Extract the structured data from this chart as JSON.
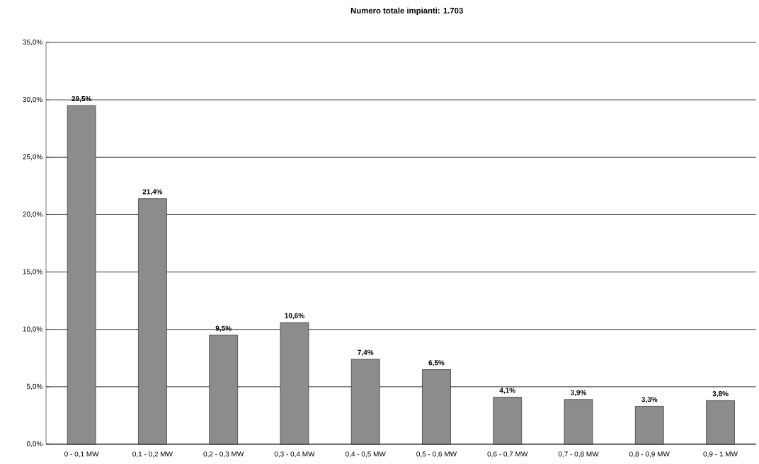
{
  "chart_data": {
    "type": "bar",
    "title": "Numero totale impianti: 1.703",
    "categories": [
      "0 - 0,1 MW",
      "0,1 - 0,2 MW",
      "0,2 - 0,3 MW",
      "0,3 - 0,4 MW",
      "0,4 - 0,5 MW",
      "0,5 - 0,6 MW",
      "0,6 - 0,7 MW",
      "0,7 - 0,8 MW",
      "0,8 - 0,9 MW",
      "0,9 - 1 MW"
    ],
    "values": [
      29.5,
      21.4,
      9.5,
      10.6,
      7.4,
      6.5,
      4.1,
      3.9,
      3.3,
      3.8
    ],
    "value_labels": [
      "29,5%",
      "21,4%",
      "9,5%",
      "10,6%",
      "7,4%",
      "6,5%",
      "4,1%",
      "3,9%",
      "3,3%",
      "3,8%"
    ],
    "color": "#8c8c8c",
    "ylim": [
      0,
      35
    ],
    "yticks": [
      {
        "value": 0,
        "label": "0,0%"
      },
      {
        "value": 5,
        "label": "5,0%"
      },
      {
        "value": 10,
        "label": "10,0%"
      },
      {
        "value": 15,
        "label": "15,0%"
      },
      {
        "value": 20,
        "label": "20,0%"
      },
      {
        "value": 25,
        "label": "25,0%"
      },
      {
        "value": 30,
        "label": "30,0%"
      },
      {
        "value": 35,
        "label": "35,0%"
      }
    ],
    "grid": "y"
  }
}
